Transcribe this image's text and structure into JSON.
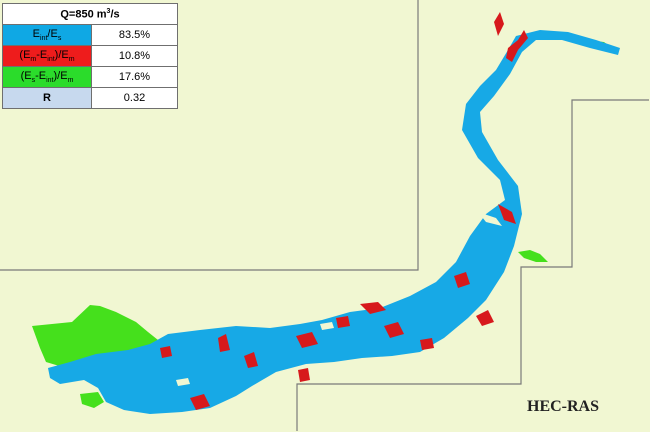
{
  "legend": {
    "title_prefix": "Q=850 m",
    "title_sup": "3",
    "title_suffix": "/s",
    "rows": [
      {
        "color": "#0fa8e4",
        "value": "83.5%"
      },
      {
        "color": "#ee1c1c",
        "value": "10.8%"
      },
      {
        "color": "#2bdc2b",
        "value": "17.6%"
      },
      {
        "color": "#c7d9ee",
        "label": "R",
        "value": "0.32"
      }
    ]
  },
  "map": {
    "model_label": "HEC-RAS",
    "colors": {
      "background": "#f1f7d2",
      "boundary": "#7a7a7a",
      "intersection": "#17a9e6",
      "model_only": "#d7191c",
      "observed_only": "#45e01c"
    }
  }
}
